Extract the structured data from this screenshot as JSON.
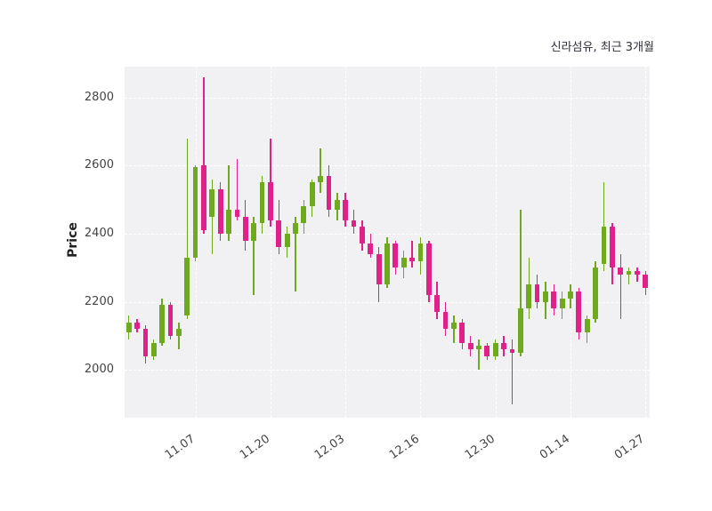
{
  "chart_data": {
    "type": "candlestick",
    "title": "신라섬유, 최근 3개월",
    "ylabel": "Price",
    "ylim": [
      1860,
      2890
    ],
    "yticks": [
      2000,
      2200,
      2400,
      2600,
      2800
    ],
    "grid": "dashed-white-on-gray",
    "colors": {
      "up": "#6faa1e",
      "down": "#e0218a",
      "plot_bg": "#f1f1f3"
    },
    "xticks": {
      "indices": [
        8,
        17,
        26,
        35,
        44,
        53,
        62
      ],
      "labels": [
        "11.07",
        "11.20",
        "12.03",
        "12.16",
        "12.30",
        "01.14",
        "01.27"
      ]
    },
    "dates": [
      "10.28",
      "10.29",
      "10.30",
      "10.31",
      "11.01",
      "11.04",
      "11.05",
      "11.06",
      "11.07",
      "11.08",
      "11.11",
      "11.12",
      "11.13",
      "11.14",
      "11.15",
      "11.18",
      "11.19",
      "11.20",
      "11.21",
      "11.22",
      "11.25",
      "11.26",
      "11.27",
      "11.28",
      "11.29",
      "12.02",
      "12.03",
      "12.04",
      "12.05",
      "12.06",
      "12.09",
      "12.10",
      "12.11",
      "12.12",
      "12.13",
      "12.16",
      "12.17",
      "12.18",
      "12.19",
      "12.20",
      "12.23",
      "12.24",
      "12.26",
      "12.27",
      "12.30",
      "01.02",
      "01.03",
      "01.06",
      "01.07",
      "01.08",
      "01.09",
      "01.10",
      "01.13",
      "01.14",
      "01.15",
      "01.16",
      "01.17",
      "01.20",
      "01.21",
      "01.22",
      "01.23",
      "01.24",
      "01.27"
    ],
    "ohlc": [
      [
        2110,
        2160,
        2090,
        2140
      ],
      [
        2140,
        2150,
        2110,
        2120
      ],
      [
        2120,
        2130,
        2020,
        2040
      ],
      [
        2040,
        2090,
        2030,
        2080
      ],
      [
        2080,
        2210,
        2070,
        2190
      ],
      [
        2190,
        2200,
        2090,
        2100
      ],
      [
        2100,
        2140,
        2060,
        2120
      ],
      [
        2160,
        2680,
        2150,
        2330
      ],
      [
        2330,
        2600,
        2320,
        2595
      ],
      [
        2600,
        2860,
        2400,
        2410
      ],
      [
        2450,
        2560,
        2340,
        2530
      ],
      [
        2530,
        2550,
        2380,
        2400
      ],
      [
        2400,
        2600,
        2380,
        2470
      ],
      [
        2470,
        2620,
        2440,
        2450
      ],
      [
        2450,
        2500,
        2350,
        2380
      ],
      [
        2380,
        2450,
        2220,
        2430
      ],
      [
        2430,
        2570,
        2400,
        2550
      ],
      [
        2550,
        2680,
        2420,
        2440
      ],
      [
        2440,
        2500,
        2340,
        2360
      ],
      [
        2360,
        2420,
        2330,
        2400
      ],
      [
        2400,
        2450,
        2230,
        2430
      ],
      [
        2430,
        2500,
        2400,
        2480
      ],
      [
        2480,
        2560,
        2450,
        2550
      ],
      [
        2550,
        2650,
        2520,
        2570
      ],
      [
        2570,
        2600,
        2450,
        2470
      ],
      [
        2470,
        2520,
        2440,
        2500
      ],
      [
        2500,
        2520,
        2420,
        2440
      ],
      [
        2440,
        2470,
        2400,
        2420
      ],
      [
        2420,
        2440,
        2350,
        2370
      ],
      [
        2370,
        2400,
        2330,
        2340
      ],
      [
        2340,
        2360,
        2200,
        2250
      ],
      [
        2250,
        2390,
        2240,
        2370
      ],
      [
        2370,
        2380,
        2280,
        2300
      ],
      [
        2300,
        2350,
        2270,
        2330
      ],
      [
        2330,
        2380,
        2300,
        2320
      ],
      [
        2320,
        2390,
        2280,
        2370
      ],
      [
        2370,
        2380,
        2200,
        2220
      ],
      [
        2220,
        2260,
        2150,
        2170
      ],
      [
        2170,
        2200,
        2100,
        2120
      ],
      [
        2120,
        2160,
        2080,
        2140
      ],
      [
        2140,
        2150,
        2060,
        2080
      ],
      [
        2080,
        2100,
        2040,
        2060
      ],
      [
        2060,
        2090,
        2000,
        2070
      ],
      [
        2070,
        2080,
        2030,
        2040
      ],
      [
        2040,
        2090,
        2030,
        2080
      ],
      [
        2080,
        2100,
        2040,
        2060
      ],
      [
        2060,
        2090,
        1900,
        2050
      ],
      [
        2050,
        2470,
        2040,
        2180
      ],
      [
        2180,
        2330,
        2150,
        2250
      ],
      [
        2250,
        2280,
        2180,
        2200
      ],
      [
        2200,
        2260,
        2150,
        2230
      ],
      [
        2230,
        2250,
        2160,
        2180
      ],
      [
        2180,
        2230,
        2150,
        2210
      ],
      [
        2210,
        2250,
        2180,
        2230
      ],
      [
        2230,
        2240,
        2090,
        2110
      ],
      [
        2110,
        2160,
        2080,
        2150
      ],
      [
        2150,
        2320,
        2140,
        2300
      ],
      [
        2310,
        2550,
        2290,
        2420
      ],
      [
        2420,
        2430,
        2250,
        2300
      ],
      [
        2300,
        2340,
        2150,
        2280
      ],
      [
        2280,
        2300,
        2250,
        2290
      ],
      [
        2290,
        2300,
        2260,
        2280
      ],
      [
        2280,
        2290,
        2220,
        2240
      ]
    ]
  }
}
